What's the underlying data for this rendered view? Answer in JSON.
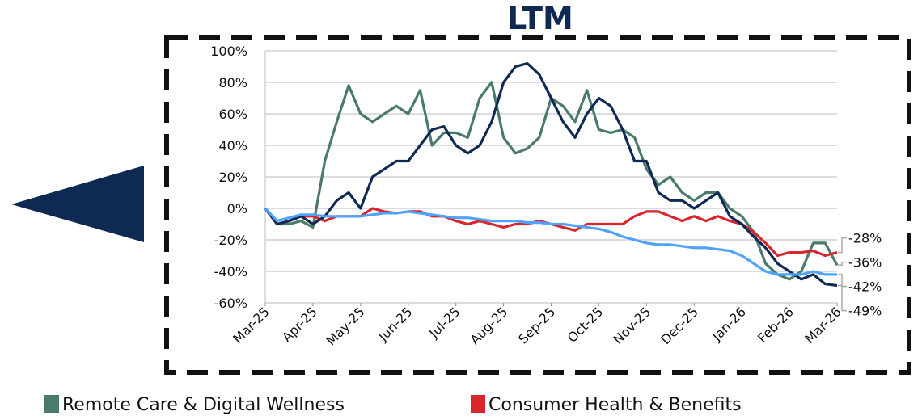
{
  "chart_data": {
    "type": "line",
    "title": "LTM",
    "x": [
      0,
      0.25,
      0.5,
      0.75,
      1,
      1.25,
      1.5,
      1.75,
      2,
      2.25,
      2.5,
      2.75,
      3,
      3.25,
      3.5,
      3.75,
      4,
      4.25,
      4.5,
      4.75,
      5,
      5.25,
      5.5,
      5.75,
      6,
      6.25,
      6.5,
      6.75,
      7,
      7.25,
      7.5,
      7.75,
      8,
      8.25,
      8.5,
      8.75,
      9,
      9.25,
      9.5,
      9.75,
      10,
      10.25,
      10.5,
      10.75,
      11,
      11.25,
      11.5,
      11.75,
      12
    ],
    "xlim": [
      0,
      12
    ],
    "xticks": [
      {
        "value": 0,
        "label": "Mar-25"
      },
      {
        "value": 1,
        "label": "Apr-25"
      },
      {
        "value": 2,
        "label": "May-25"
      },
      {
        "value": 3,
        "label": "Jun-25"
      },
      {
        "value": 4,
        "label": "Jul-25"
      },
      {
        "value": 5,
        "label": "Aug-25"
      },
      {
        "value": 6,
        "label": "Sep-25"
      },
      {
        "value": 7,
        "label": "Oct-25"
      },
      {
        "value": 8,
        "label": "Nov-25"
      },
      {
        "value": 9,
        "label": "Dec-25"
      },
      {
        "value": 10,
        "label": "Jan-26"
      },
      {
        "value": 11,
        "label": "Feb-26"
      },
      {
        "value": 12,
        "label": "Mar-26"
      }
    ],
    "ylim": [
      -60,
      100
    ],
    "yticks": [
      {
        "value": -60,
        "label": "-60%"
      },
      {
        "value": -40,
        "label": "-40%"
      },
      {
        "value": -20,
        "label": "-20%"
      },
      {
        "value": 0,
        "label": "0%"
      },
      {
        "value": 20,
        "label": "20%"
      },
      {
        "value": 40,
        "label": "40%"
      },
      {
        "value": 60,
        "label": "60%"
      },
      {
        "value": 80,
        "label": "80%"
      },
      {
        "value": 100,
        "label": "100%"
      }
    ],
    "grid": true,
    "series": [
      {
        "name": "Remote Care & Digital Wellness",
        "color": "#4a7a6a",
        "end_label": "-36%",
        "values": [
          0,
          -10,
          -10,
          -8,
          -12,
          30,
          55,
          78,
          60,
          55,
          60,
          65,
          60,
          75,
          40,
          48,
          48,
          45,
          70,
          80,
          45,
          35,
          38,
          45,
          70,
          65,
          55,
          75,
          50,
          48,
          50,
          45,
          25,
          15,
          20,
          10,
          5,
          10,
          10,
          0,
          -5,
          -15,
          -35,
          -42,
          -45,
          -40,
          -22,
          -22,
          -36
        ]
      },
      {
        "name": "Consumer Health & Benefits",
        "color": "#d9262e",
        "end_label": "-28%",
        "values": [
          0,
          -10,
          -8,
          -5,
          -5,
          -8,
          -5,
          -5,
          -5,
          0,
          -2,
          -3,
          -2,
          -2,
          -5,
          -5,
          -8,
          -10,
          -8,
          -10,
          -12,
          -10,
          -10,
          -8,
          -10,
          -12,
          -14,
          -10,
          -10,
          -10,
          -10,
          -5,
          -2,
          -2,
          -5,
          -8,
          -5,
          -8,
          -5,
          -8,
          -10,
          -15,
          -22,
          -30,
          -28,
          -28,
          -27,
          -30,
          -28
        ]
      },
      {
        "color": "#0f2a52",
        "end_label": "-49%",
        "values": [
          0,
          -10,
          -8,
          -5,
          -10,
          -5,
          5,
          10,
          0,
          20,
          25,
          30,
          30,
          40,
          50,
          52,
          40,
          35,
          40,
          55,
          80,
          90,
          92,
          85,
          70,
          55,
          45,
          60,
          70,
          65,
          50,
          30,
          30,
          10,
          5,
          5,
          0,
          5,
          10,
          -5,
          -10,
          -18,
          -25,
          -35,
          -40,
          -45,
          -42,
          -48,
          -49
        ]
      },
      {
        "color": "#4da3ff",
        "end_label": "-42%",
        "values": [
          0,
          -8,
          -6,
          -4,
          -4,
          -5,
          -5,
          -5,
          -5,
          -4,
          -3,
          -3,
          -2,
          -3,
          -4,
          -5,
          -6,
          -6,
          -7,
          -8,
          -8,
          -8,
          -9,
          -9,
          -10,
          -10,
          -11,
          -12,
          -13,
          -15,
          -18,
          -20,
          -22,
          -23,
          -23,
          -24,
          -25,
          -25,
          -26,
          -27,
          -30,
          -35,
          -40,
          -42,
          -42,
          -42,
          -40,
          -42,
          -42
        ]
      }
    ]
  }
}
